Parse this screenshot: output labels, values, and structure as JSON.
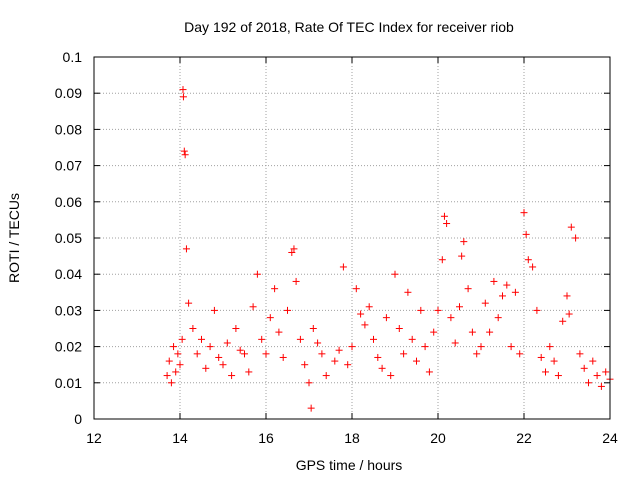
{
  "chart_data": {
    "type": "scatter",
    "title": "Day 192 of 2018, Rate Of TEC Index for receiver riob",
    "xlabel": "GPS time / hours",
    "ylabel": "ROTI / TECUs",
    "xlim": [
      12,
      24
    ],
    "ylim": [
      0,
      0.1
    ],
    "x_ticks": [
      "12",
      "14",
      "16",
      "18",
      "20",
      "22",
      "24"
    ],
    "y_ticks": [
      "0",
      "0.01",
      "0.02",
      "0.03",
      "0.04",
      "0.05",
      "0.06",
      "0.07",
      "0.08",
      "0.09",
      "0.1"
    ],
    "grid": true,
    "marker": "+",
    "color": "#ff0000",
    "series": [
      {
        "name": "ROTI",
        "x": [
          13.7,
          13.75,
          13.8,
          13.85,
          13.9,
          13.95,
          14.0,
          14.05,
          14.07,
          14.08,
          14.1,
          14.12,
          14.15,
          14.2,
          14.3,
          14.4,
          14.5,
          14.6,
          14.7,
          14.8,
          14.9,
          15.0,
          15.1,
          15.2,
          15.3,
          15.4,
          15.5,
          15.6,
          15.7,
          15.8,
          15.9,
          16.0,
          16.1,
          16.2,
          16.3,
          16.4,
          16.5,
          16.6,
          16.65,
          16.7,
          16.8,
          16.9,
          17.0,
          17.05,
          17.1,
          17.2,
          17.3,
          17.4,
          17.6,
          17.7,
          17.8,
          17.9,
          18.0,
          18.1,
          18.2,
          18.3,
          18.4,
          18.5,
          18.6,
          18.7,
          18.8,
          18.9,
          19.0,
          19.1,
          19.2,
          19.3,
          19.4,
          19.5,
          19.6,
          19.7,
          19.8,
          19.9,
          20.0,
          20.1,
          20.15,
          20.2,
          20.3,
          20.4,
          20.5,
          20.55,
          20.6,
          20.7,
          20.8,
          20.9,
          21.0,
          21.1,
          21.2,
          21.3,
          21.4,
          21.5,
          21.6,
          21.7,
          21.8,
          21.9,
          22.0,
          22.05,
          22.1,
          22.2,
          22.3,
          22.4,
          22.5,
          22.6,
          22.7,
          22.8,
          22.9,
          23.0,
          23.05,
          23.1,
          23.2,
          23.3,
          23.4,
          23.5,
          23.6,
          23.7,
          23.8,
          23.9,
          24.0
        ],
        "y": [
          0.012,
          0.016,
          0.01,
          0.02,
          0.013,
          0.018,
          0.015,
          0.022,
          0.091,
          0.089,
          0.074,
          0.073,
          0.047,
          0.032,
          0.025,
          0.018,
          0.022,
          0.014,
          0.02,
          0.03,
          0.017,
          0.015,
          0.021,
          0.012,
          0.025,
          0.019,
          0.018,
          0.013,
          0.031,
          0.04,
          0.022,
          0.018,
          0.028,
          0.036,
          0.024,
          0.017,
          0.03,
          0.046,
          0.047,
          0.038,
          0.022,
          0.015,
          0.01,
          0.003,
          0.025,
          0.021,
          0.018,
          0.012,
          0.016,
          0.019,
          0.042,
          0.015,
          0.02,
          0.036,
          0.029,
          0.026,
          0.031,
          0.022,
          0.017,
          0.014,
          0.028,
          0.012,
          0.04,
          0.025,
          0.018,
          0.035,
          0.022,
          0.016,
          0.03,
          0.02,
          0.013,
          0.024,
          0.03,
          0.044,
          0.056,
          0.054,
          0.028,
          0.021,
          0.031,
          0.045,
          0.049,
          0.036,
          0.024,
          0.018,
          0.02,
          0.032,
          0.024,
          0.038,
          0.028,
          0.034,
          0.037,
          0.02,
          0.035,
          0.018,
          0.057,
          0.051,
          0.044,
          0.042,
          0.03,
          0.017,
          0.013,
          0.02,
          0.016,
          0.012,
          0.027,
          0.034,
          0.029,
          0.053,
          0.05,
          0.018,
          0.014,
          0.01,
          0.016,
          0.012,
          0.009,
          0.013,
          0.011
        ]
      }
    ]
  }
}
